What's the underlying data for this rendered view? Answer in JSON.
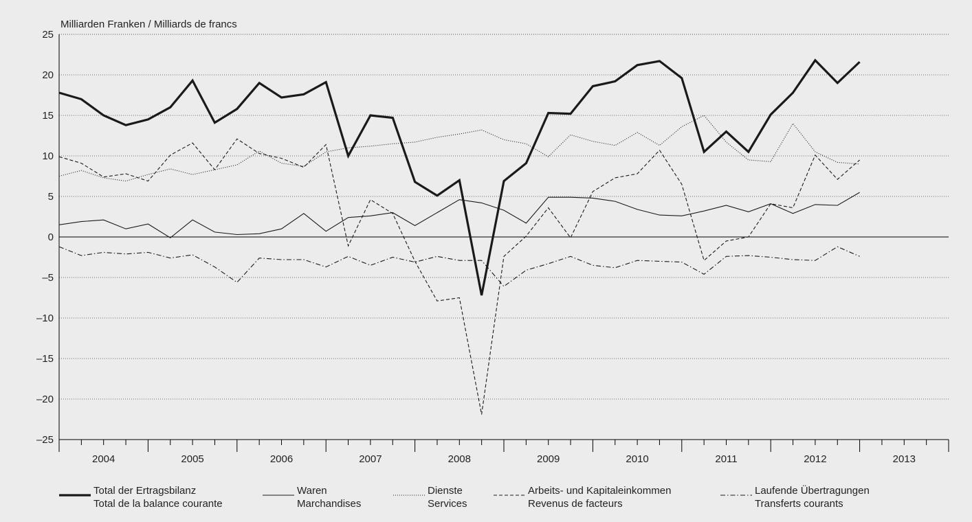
{
  "chart_data": {
    "type": "line",
    "unit_label": "Milliarden Franken / Milliards de francs",
    "ylim": [
      -25,
      25
    ],
    "yticks": [
      25,
      20,
      15,
      10,
      5,
      0,
      -5,
      -10,
      -15,
      -20,
      -25
    ],
    "ytick_labels": [
      "25",
      "20",
      "15",
      "10",
      "5",
      "0",
      "–5",
      "–10",
      "–15",
      "–20",
      "–25"
    ],
    "xlim": [
      2003.875,
      2013.875
    ],
    "years": [
      "2004",
      "2005",
      "2006",
      "2007",
      "2008",
      "2009",
      "2010",
      "2011",
      "2012",
      "2013"
    ],
    "grid": true,
    "legend_position": "bottom",
    "x": [
      2003.875,
      2004.125,
      2004.375,
      2004.625,
      2004.875,
      2005.125,
      2005.375,
      2005.625,
      2005.875,
      2006.125,
      2006.375,
      2006.625,
      2006.875,
      2007.125,
      2007.375,
      2007.625,
      2007.875,
      2008.125,
      2008.375,
      2008.625,
      2008.875,
      2009.125,
      2009.375,
      2009.625,
      2009.875,
      2010.125,
      2010.375,
      2010.625,
      2010.875,
      2011.125,
      2011.375,
      2011.625,
      2011.875,
      2012.125,
      2012.375,
      2012.625,
      2012.875
    ],
    "series": [
      {
        "name": "Total der Ertragsbilanz",
        "name2": "Total de la balance courante",
        "style": "thick",
        "values": [
          17.8,
          17.0,
          15.0,
          13.8,
          14.5,
          16.0,
          19.3,
          14.1,
          15.8,
          19.0,
          17.2,
          17.6,
          19.1,
          10.0,
          15.0,
          14.7,
          6.8,
          5.1,
          7.0,
          -7.2,
          6.9,
          9.1,
          15.3,
          15.2,
          18.6,
          19.2,
          21.2,
          21.7,
          19.6,
          10.5,
          13.0,
          10.5,
          15.1,
          17.8,
          21.8,
          19.0,
          21.6
        ]
      },
      {
        "name": "Waren",
        "name2": "Marchandises",
        "style": "solid",
        "values": [
          1.5,
          1.9,
          2.1,
          1.0,
          1.6,
          -0.1,
          2.1,
          0.6,
          0.3,
          0.4,
          1.0,
          2.9,
          0.7,
          2.4,
          2.6,
          3.0,
          1.4,
          3.0,
          4.6,
          4.2,
          3.3,
          1.7,
          4.9,
          4.9,
          4.8,
          4.4,
          3.4,
          2.7,
          2.6,
          3.2,
          3.9,
          3.1,
          4.1,
          2.9,
          4.0,
          3.9,
          5.5
        ]
      },
      {
        "name": "Dienste",
        "name2": "Services",
        "style": "dotted",
        "values": [
          7.5,
          8.2,
          7.3,
          6.9,
          7.7,
          8.4,
          7.7,
          8.3,
          8.9,
          10.6,
          9.1,
          8.7,
          10.5,
          11.0,
          11.2,
          11.5,
          11.7,
          12.3,
          12.7,
          13.2,
          12.0,
          11.5,
          9.9,
          12.6,
          11.8,
          11.3,
          12.9,
          11.3,
          13.6,
          15.0,
          11.7,
          9.5,
          9.3,
          14.0,
          10.5,
          9.2,
          9.0
        ]
      },
      {
        "name": "Arbeits- und Kapitaleinkommen",
        "name2": "Revenus de facteurs",
        "style": "dashed",
        "values": [
          9.9,
          9.1,
          7.4,
          7.8,
          6.9,
          10.1,
          11.6,
          8.3,
          12.1,
          10.3,
          9.7,
          8.6,
          11.4,
          -1.1,
          4.6,
          2.9,
          -3.0,
          -7.9,
          -7.5,
          -21.9,
          -2.4,
          0.1,
          3.6,
          -0.1,
          5.6,
          7.3,
          7.8,
          10.7,
          6.5,
          -2.9,
          -0.5,
          0.0,
          4.1,
          3.6,
          10.1,
          7.1,
          9.5
        ]
      },
      {
        "name": "Laufende Übertragungen",
        "name2": "Transferts courants",
        "style": "dashdot",
        "values": [
          -1.2,
          -2.3,
          -1.9,
          -2.1,
          -1.9,
          -2.6,
          -2.2,
          -3.7,
          -5.6,
          -2.6,
          -2.8,
          -2.8,
          -3.7,
          -2.4,
          -3.5,
          -2.5,
          -3.1,
          -2.4,
          -2.9,
          -2.9,
          -6.1,
          -4.1,
          -3.3,
          -2.4,
          -3.5,
          -3.8,
          -2.9,
          -3.0,
          -3.1,
          -4.6,
          -2.4,
          -2.3,
          -2.5,
          -2.8,
          -2.9,
          -1.2,
          -2.4
        ]
      }
    ]
  }
}
